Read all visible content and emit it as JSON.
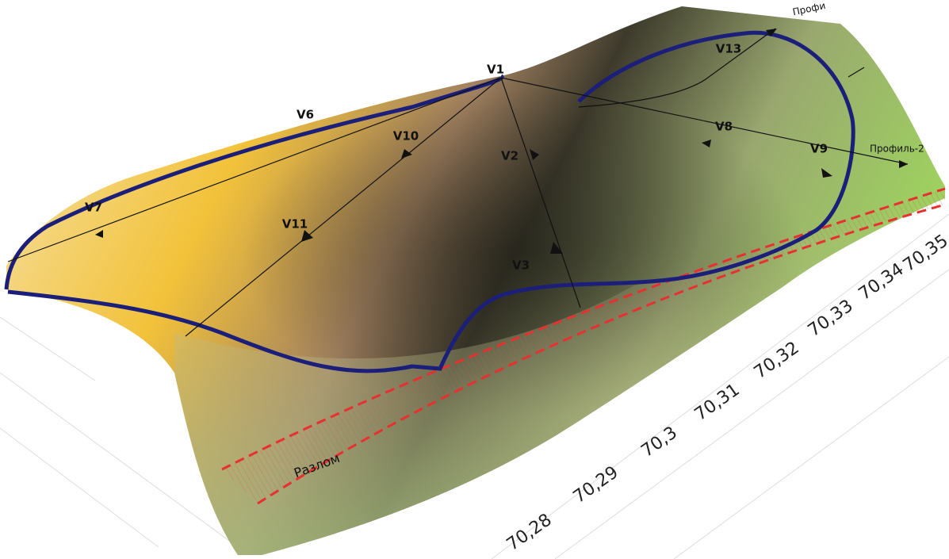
{
  "wells": [
    {
      "label": "V1"
    },
    {
      "label": "V2"
    },
    {
      "label": "V3"
    },
    {
      "label": "V6"
    },
    {
      "label": "V7"
    },
    {
      "label": "V8"
    },
    {
      "label": "V9"
    },
    {
      "label": "V10"
    },
    {
      "label": "V11"
    },
    {
      "label": "V13"
    }
  ],
  "profiles": [
    {
      "label": "Профи"
    },
    {
      "label": "Профиль-2"
    }
  ],
  "fault": {
    "label": "Разлом"
  },
  "axis": {
    "labels": [
      "70,28",
      "70,29",
      "70,3",
      "70,31",
      "70,32",
      "70,33",
      "70,34",
      "70,35"
    ]
  }
}
